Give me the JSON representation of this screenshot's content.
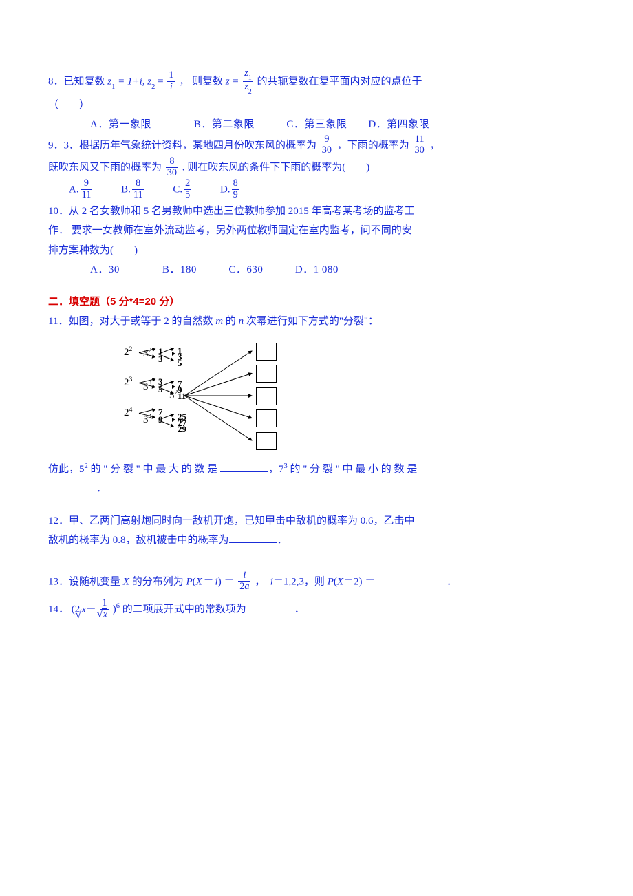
{
  "q8": {
    "stem_a": "8．已知复数 ",
    "formula_z1": "z",
    "formula_z1s": "1",
    "formula_z1eq": " = 1+i, z",
    "formula_z2s": "2",
    "formula_z2eq": " = ",
    "frac_num": "1",
    "frac_den_i": "i",
    "stem_b": "， 则复数 ",
    "formula_zeq": "z = ",
    "frac2_num": "z",
    "frac2_num_s": "1",
    "frac2_den": "z",
    "frac2_den_s": "2",
    "stem_c": " 的共轭复数在复平面内对应的点位于",
    "paren": "（　　）",
    "opts": "　　A．第一象限　　　　B．第二象限　　　C．第三象限　　D．第四象限"
  },
  "q9": {
    "stem_a": "9．3．根据历年气象统计资料，某地四月份吹东风的概率为",
    "f1n": "9",
    "f1d": "30",
    "stem_b": "，下雨的概率为",
    "f2n": "11",
    "f2d": "30",
    "stem_c": "，",
    "stem_d": "既吹东风又下雨的概率为",
    "f3n": "8",
    "f3d": "30",
    "stem_e": ". 则在吹东风的条件下下雨的概率为(　　)",
    "optA": "A.",
    "optAn": "9",
    "optAd": "11",
    "optB": "B.",
    "optBn": "8",
    "optBd": "11",
    "optC": "C.",
    "optCn": "2",
    "optCd": "5",
    "optD": "D.",
    "optDn": "8",
    "optDd": "9"
  },
  "q10": {
    "line1": "10．从 2 名女教师和 5 名男教师中选出三位教师参加 2015 年高考某考场的监考工",
    "line2": "作． 要求一女教师在室外流动监考，另外两位教师固定在室内监考，问不同的安",
    "line3": "排方案种数为(　　)",
    "opts": "　　A．30　　　　B．180　　　C．630　　　D．1 080"
  },
  "section2": "二．填空题（5 分*4=20 分）",
  "q11": {
    "stem_a": "11．如图，对大于或等于 2 的自然数 ",
    "m": "m",
    "stem_b": " 的 ",
    "n": "n",
    "stem_c": " 次幂进行如下方式的\"分裂\"：",
    "splits": {
      "col1": [
        {
          "base": "2",
          "exp": "2",
          "parts": [
            "1",
            "3"
          ]
        },
        {
          "base": "2",
          "exp": "3",
          "parts": [
            "3",
            "5"
          ]
        },
        {
          "base": "2",
          "exp": "4",
          "parts": [
            "7",
            "9"
          ]
        }
      ],
      "col2": [
        {
          "base": "3",
          "exp": "2",
          "parts": [
            "1",
            "3",
            "5"
          ]
        },
        {
          "base": "3",
          "exp": "3",
          "parts": [
            "7",
            "9",
            "11"
          ]
        },
        {
          "base": "3",
          "exp": "4",
          "parts": [
            "25",
            "27",
            "29"
          ]
        }
      ],
      "big": {
        "base": "5",
        "exp": "2",
        "boxes": 5
      }
    },
    "tail_a": "仿此，5",
    "tail_a_exp": "2",
    "tail_b": " 的 \" 分 裂 \" 中 最 大 的 数 是 ",
    "tail_c": "，7",
    "tail_c_exp": "3",
    "tail_d": " 的 \" 分 裂 \" 中 最 小 的 数 是",
    "tail_e": "．"
  },
  "q12": {
    "line1": "12．甲、乙两门高射炮同时向一敌机开炮，已知甲击中敌机的概率为 0.6，乙击中",
    "line2": "敌机的概率为 0.8，敌机被击中的概率为",
    "tail": "．"
  },
  "q13": {
    "stem_a": "13．设随机变量 ",
    "X": "X",
    "stem_b": " 的分布列为 ",
    "P": "P",
    "paren_a": "(",
    "Xeq": "X＝ ",
    "ivar": "i",
    "paren_b": ")",
    "eq": " ＝",
    "fn": "i",
    "fd_a": "2",
    "fd_b": "a",
    "stem_c": "，　",
    "ieq": "i",
    "stem_d": "＝1,2,3，则 ",
    "P2": "P",
    "paren_c": "(",
    "X2": "X",
    "stem_e": "＝2)",
    "stem_f": " ＝",
    "tail": " ．"
  },
  "q14": {
    "stem_a": "14． (2",
    "sqrt_x": "x",
    "minus": "－",
    "fn": "1",
    "fd_sqrt_x": "x",
    "stem_b": ")",
    "exp": "6",
    "stem_c": " 的二项展开式中的常数项为",
    "tail": "．"
  }
}
